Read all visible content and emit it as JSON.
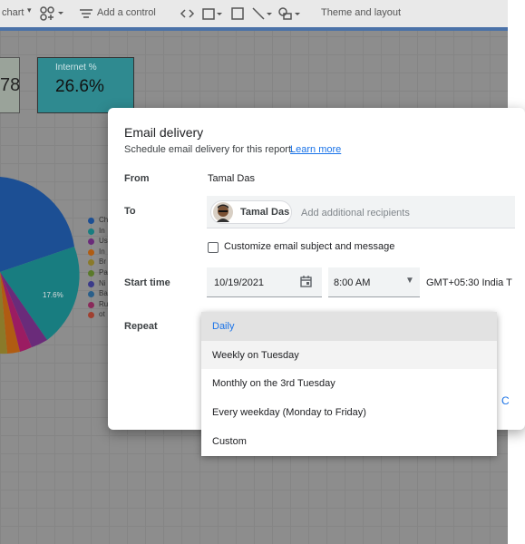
{
  "toolbar": {
    "items": [
      "chart",
      "Add a control",
      "Theme and layout"
    ]
  },
  "scorecards": [
    {
      "value": "78"
    },
    {
      "label": "Internet %",
      "value": "26.6%"
    }
  ],
  "pie": {
    "slice_label": "17.6%",
    "legend": [
      "Ch",
      "In",
      "Us",
      "In",
      "Br",
      "Pa",
      "Ni",
      "Ba",
      "Ru",
      "ot"
    ]
  },
  "dialog": {
    "title": "Email delivery",
    "subtitle": "Schedule email delivery for this report.",
    "learn_more": "Learn more",
    "from_label": "From",
    "from_value": "Tamal Das",
    "to_label": "To",
    "recipient": "Tamal Das",
    "recipient_placeholder": "Add additional recipients",
    "customize": "Customize email subject and message",
    "start_time_label": "Start time",
    "date": "10/19/2021",
    "time": "8:00 AM",
    "timezone": "GMT+05:30 India T",
    "repeat_label": "Repeat",
    "cancel_partial": "C"
  },
  "repeat_menu": {
    "options": [
      "Daily",
      "Weekly on Tuesday",
      "Monthly on the 3rd Tuesday",
      "Every weekday (Monday to Friday)",
      "Custom"
    ],
    "selected": 0
  }
}
